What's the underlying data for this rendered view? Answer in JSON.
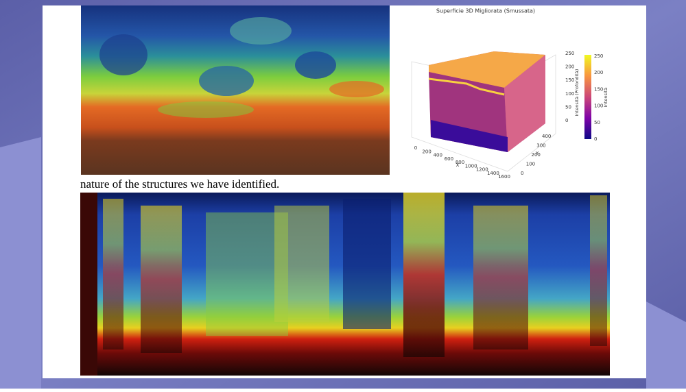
{
  "body_text": "nature of the structures we have identified.",
  "plot": {
    "title": "Superficie 3D Migliorata (Smussata)",
    "x_axis_label": "X",
    "y_axis_label": "Y",
    "z_axis_label": "Intensità (Profondità)",
    "colorbar_label": "Intensità",
    "x_ticks": [
      0,
      200,
      400,
      600,
      800,
      1000,
      1200,
      1400,
      1600
    ],
    "y_ticks": [
      0,
      100,
      200,
      300,
      400
    ],
    "z_ticks": [
      0,
      50,
      100,
      150,
      200,
      250
    ],
    "colorbar_ticks": [
      0,
      50,
      100,
      150,
      200,
      250
    ]
  }
}
